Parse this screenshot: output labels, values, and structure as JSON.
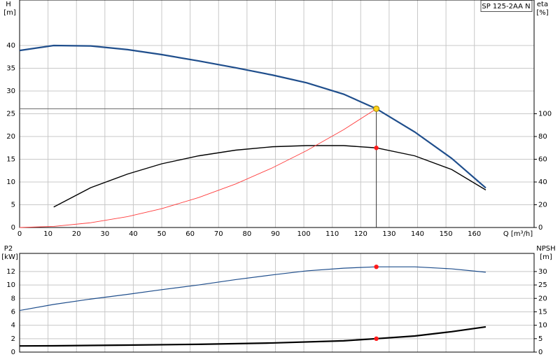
{
  "chart_data": [
    {
      "type": "line",
      "title": "SP 125-2AA N",
      "x_label": "Q [m³/h]",
      "y_label": "H",
      "y_unit": "[m]",
      "y2_label": "eta",
      "y2_unit": "[%]",
      "xlim": [
        0,
        181
      ],
      "xticks": [
        0,
        10,
        20,
        30,
        40,
        50,
        60,
        70,
        80,
        90,
        100,
        110,
        120,
        130,
        140,
        150,
        160
      ],
      "ylim": [
        0,
        50
      ],
      "yticks": [
        0,
        5,
        10,
        15,
        20,
        25,
        30,
        35,
        40
      ],
      "y2lim": [
        0,
        200
      ],
      "y2ticks": [
        0,
        20,
        40,
        60,
        80,
        100
      ],
      "grid": true,
      "series": [
        {
          "color": "#1f4e8c",
          "axis": "y",
          "x": [
            0,
            12,
            25,
            38,
            50,
            63,
            76,
            89,
            101,
            114,
            125.5,
            139,
            152,
            164
          ],
          "values": [
            38.9,
            40,
            39.9,
            39.1,
            38,
            36.6,
            35.1,
            33.5,
            31.8,
            29.3,
            26.1,
            21,
            15.2,
            8.7
          ]
        },
        {
          "color": "#000000",
          "axis": "y2",
          "x": [
            12,
            25,
            38,
            50,
            63,
            76,
            89,
            101,
            114,
            125.5,
            139,
            152,
            164
          ],
          "values": [
            18,
            35,
            47,
            56,
            63,
            68,
            71,
            72,
            72,
            70,
            63,
            51,
            33
          ]
        },
        {
          "color": "#ff3b3b",
          "axis": "y",
          "x": [
            0,
            12,
            25,
            38,
            50,
            63,
            76,
            89,
            101,
            114,
            125.5
          ],
          "values": [
            0,
            0.24,
            1.04,
            2.39,
            4.14,
            6.58,
            9.57,
            13.13,
            16.9,
            21.5,
            26.1
          ]
        }
      ],
      "duty_point": {
        "x": 125.5,
        "y": 26.1,
        "y2": 70,
        "y_color": "#ffd21a",
        "y2_color": "#ff1a1a"
      }
    },
    {
      "type": "line",
      "y_label": "P2",
      "y_unit": "[kW]",
      "y2_label": "NPSH",
      "y2_unit": "[m]",
      "xlim": [
        0,
        181
      ],
      "xticks": [
        0,
        10,
        20,
        30,
        40,
        50,
        60,
        70,
        80,
        90,
        100,
        110,
        120,
        130,
        140,
        150,
        160
      ],
      "ylim": [
        0,
        14.7
      ],
      "yticks": [
        0,
        2,
        4,
        6,
        8,
        10,
        12
      ],
      "y2lim": [
        0,
        36.75
      ],
      "y2ticks": [
        0,
        5,
        10,
        15,
        20,
        25,
        30
      ],
      "grid": true,
      "series": [
        {
          "color": "#1f4e8c",
          "axis": "y",
          "x": [
            0,
            12,
            25,
            38,
            50,
            63,
            76,
            89,
            101,
            114,
            125.5,
            139,
            152,
            164
          ],
          "values": [
            6.2,
            7.1,
            7.9,
            8.6,
            9.3,
            10,
            10.8,
            11.5,
            12.1,
            12.5,
            12.7,
            12.7,
            12.4,
            11.9
          ]
        },
        {
          "color": "#000000",
          "axis": "y2",
          "x": [
            0,
            12,
            38,
            63,
            89,
            114,
            125.5,
            139,
            152,
            164
          ],
          "values": [
            2.3,
            2.35,
            2.6,
            2.9,
            3.4,
            4.2,
            5.0,
            6,
            7.6,
            9.4
          ]
        }
      ],
      "duty_point": {
        "x": 125.5,
        "y": 12.7,
        "y2": 5.0,
        "y_color": "#ff1a1a",
        "y2_color": "#ff1a1a"
      }
    }
  ]
}
